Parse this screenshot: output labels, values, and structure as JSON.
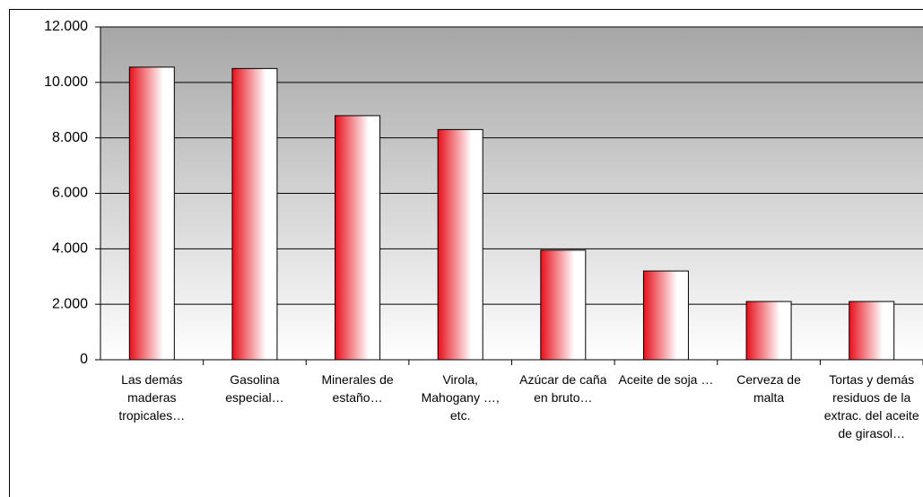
{
  "chart_data": {
    "type": "bar",
    "categories": [
      "Las demás maderas tropicales…",
      "Gasolina especial…",
      "Minerales de estaño…",
      "Virola, Mahogany …, etc.",
      "Azúcar de caña en bruto…",
      "Aceite de soja …",
      "Cerveza de malta",
      "Tortas y demás residuos de la extrac. del aceite de girasol…"
    ],
    "values": [
      10550,
      10500,
      8800,
      8300,
      3950,
      3200,
      2100,
      2100
    ],
    "color": "#e8101c",
    "ylim": [
      0,
      12000
    ],
    "yticks": [
      0,
      {
        "value": 2000,
        "label": "2.000"
      },
      {
        "value": 4000,
        "label": "4.000"
      },
      {
        "value": 6000,
        "label": "6.000"
      },
      {
        "value": 8000,
        "label": "8.000"
      },
      {
        "value": 10000,
        "label": "10.000"
      },
      {
        "value": 12000,
        "label": "12.000"
      }
    ],
    "grid": true
  }
}
